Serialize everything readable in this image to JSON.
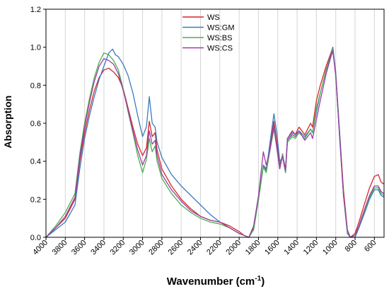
{
  "chart_data": {
    "type": "line",
    "xlabel_main": "Wavenumber (cm",
    "xlabel_sup": "-1",
    "xlabel_end": ")",
    "ylabel": "Absorption",
    "xlim": [
      4000,
      500
    ],
    "ylim": [
      0,
      1.2
    ],
    "grid": "vertical",
    "legend_position": "top-center",
    "x_ticks": [
      4000,
      3800,
      3600,
      3400,
      3200,
      3000,
      2800,
      2600,
      2400,
      2200,
      2000,
      1800,
      1600,
      1400,
      1200,
      1000,
      800,
      600
    ],
    "y_ticks": [
      "0.0",
      "0.2",
      "0.4",
      "0.6",
      "0.8",
      "1.0",
      "1.2"
    ],
    "series": [
      {
        "name": "WS",
        "color": "#d62728",
        "points": [
          [
            4000,
            0.0
          ],
          [
            3900,
            0.05
          ],
          [
            3800,
            0.1
          ],
          [
            3700,
            0.2
          ],
          [
            3650,
            0.4
          ],
          [
            3600,
            0.55
          ],
          [
            3550,
            0.67
          ],
          [
            3500,
            0.77
          ],
          [
            3450,
            0.84
          ],
          [
            3400,
            0.88
          ],
          [
            3350,
            0.89
          ],
          [
            3300,
            0.87
          ],
          [
            3250,
            0.84
          ],
          [
            3200,
            0.78
          ],
          [
            3150,
            0.68
          ],
          [
            3100,
            0.58
          ],
          [
            3050,
            0.49
          ],
          [
            3000,
            0.43
          ],
          [
            2960,
            0.47
          ],
          [
            2930,
            0.61
          ],
          [
            2900,
            0.53
          ],
          [
            2870,
            0.55
          ],
          [
            2850,
            0.46
          ],
          [
            2800,
            0.36
          ],
          [
            2700,
            0.27
          ],
          [
            2600,
            0.2
          ],
          [
            2500,
            0.15
          ],
          [
            2400,
            0.11
          ],
          [
            2300,
            0.09
          ],
          [
            2200,
            0.08
          ],
          [
            2100,
            0.06
          ],
          [
            2000,
            0.03
          ],
          [
            1950,
            0.01
          ],
          [
            1900,
            0.0
          ],
          [
            1850,
            0.05
          ],
          [
            1800,
            0.2
          ],
          [
            1750,
            0.38
          ],
          [
            1720,
            0.36
          ],
          [
            1680,
            0.48
          ],
          [
            1640,
            0.61
          ],
          [
            1610,
            0.5
          ],
          [
            1580,
            0.38
          ],
          [
            1550,
            0.43
          ],
          [
            1520,
            0.36
          ],
          [
            1500,
            0.52
          ],
          [
            1450,
            0.56
          ],
          [
            1420,
            0.54
          ],
          [
            1380,
            0.58
          ],
          [
            1320,
            0.54
          ],
          [
            1260,
            0.6
          ],
          [
            1240,
            0.58
          ],
          [
            1200,
            0.72
          ],
          [
            1160,
            0.8
          ],
          [
            1100,
            0.9
          ],
          [
            1050,
            0.97
          ],
          [
            1030,
            1.0
          ],
          [
            1000,
            0.85
          ],
          [
            960,
            0.55
          ],
          [
            920,
            0.25
          ],
          [
            880,
            0.04
          ],
          [
            850,
            0.0
          ],
          [
            800,
            0.02
          ],
          [
            760,
            0.08
          ],
          [
            700,
            0.18
          ],
          [
            650,
            0.26
          ],
          [
            600,
            0.32
          ],
          [
            560,
            0.33
          ],
          [
            530,
            0.29
          ],
          [
            500,
            0.28
          ]
        ]
      },
      {
        "name": "WS:GM",
        "color": "#3a7bbf",
        "points": [
          [
            4000,
            0.0
          ],
          [
            3900,
            0.04
          ],
          [
            3800,
            0.08
          ],
          [
            3700,
            0.17
          ],
          [
            3650,
            0.36
          ],
          [
            3600,
            0.52
          ],
          [
            3550,
            0.64
          ],
          [
            3500,
            0.74
          ],
          [
            3450,
            0.83
          ],
          [
            3400,
            0.9
          ],
          [
            3350,
            0.97
          ],
          [
            3310,
            0.99
          ],
          [
            3280,
            0.96
          ],
          [
            3250,
            0.95
          ],
          [
            3200,
            0.91
          ],
          [
            3150,
            0.85
          ],
          [
            3100,
            0.76
          ],
          [
            3050,
            0.64
          ],
          [
            3000,
            0.53
          ],
          [
            2960,
            0.58
          ],
          [
            2930,
            0.74
          ],
          [
            2900,
            0.6
          ],
          [
            2870,
            0.58
          ],
          [
            2850,
            0.5
          ],
          [
            2800,
            0.42
          ],
          [
            2700,
            0.33
          ],
          [
            2600,
            0.27
          ],
          [
            2500,
            0.22
          ],
          [
            2400,
            0.17
          ],
          [
            2300,
            0.12
          ],
          [
            2200,
            0.08
          ],
          [
            2100,
            0.05
          ],
          [
            2000,
            0.02
          ],
          [
            1950,
            0.01
          ],
          [
            1900,
            0.0
          ],
          [
            1850,
            0.04
          ],
          [
            1800,
            0.2
          ],
          [
            1750,
            0.38
          ],
          [
            1720,
            0.35
          ],
          [
            1680,
            0.5
          ],
          [
            1640,
            0.65
          ],
          [
            1610,
            0.55
          ],
          [
            1580,
            0.4
          ],
          [
            1550,
            0.42
          ],
          [
            1520,
            0.34
          ],
          [
            1500,
            0.52
          ],
          [
            1450,
            0.55
          ],
          [
            1420,
            0.54
          ],
          [
            1380,
            0.56
          ],
          [
            1320,
            0.53
          ],
          [
            1260,
            0.57
          ],
          [
            1240,
            0.55
          ],
          [
            1200,
            0.66
          ],
          [
            1160,
            0.76
          ],
          [
            1100,
            0.88
          ],
          [
            1050,
            0.96
          ],
          [
            1030,
            1.0
          ],
          [
            1000,
            0.87
          ],
          [
            960,
            0.55
          ],
          [
            920,
            0.22
          ],
          [
            880,
            0.02
          ],
          [
            850,
            0.0
          ],
          [
            800,
            0.0
          ],
          [
            760,
            0.05
          ],
          [
            700,
            0.13
          ],
          [
            650,
            0.2
          ],
          [
            600,
            0.25
          ],
          [
            560,
            0.25
          ],
          [
            530,
            0.22
          ],
          [
            500,
            0.21
          ]
        ]
      },
      {
        "name": "WS:BS",
        "color": "#4caf50",
        "points": [
          [
            4000,
            0.0
          ],
          [
            3900,
            0.06
          ],
          [
            3800,
            0.13
          ],
          [
            3700,
            0.23
          ],
          [
            3650,
            0.44
          ],
          [
            3600,
            0.6
          ],
          [
            3550,
            0.73
          ],
          [
            3500,
            0.84
          ],
          [
            3450,
            0.92
          ],
          [
            3400,
            0.97
          ],
          [
            3350,
            0.96
          ],
          [
            3300,
            0.93
          ],
          [
            3250,
            0.88
          ],
          [
            3200,
            0.78
          ],
          [
            3150,
            0.66
          ],
          [
            3100,
            0.55
          ],
          [
            3050,
            0.43
          ],
          [
            3000,
            0.34
          ],
          [
            2960,
            0.41
          ],
          [
            2930,
            0.52
          ],
          [
            2900,
            0.45
          ],
          [
            2870,
            0.48
          ],
          [
            2850,
            0.4
          ],
          [
            2800,
            0.31
          ],
          [
            2700,
            0.23
          ],
          [
            2600,
            0.17
          ],
          [
            2500,
            0.13
          ],
          [
            2400,
            0.1
          ],
          [
            2300,
            0.08
          ],
          [
            2200,
            0.07
          ],
          [
            2100,
            0.05
          ],
          [
            2000,
            0.02
          ],
          [
            1950,
            0.01
          ],
          [
            1900,
            0.0
          ],
          [
            1850,
            0.04
          ],
          [
            1800,
            0.2
          ],
          [
            1750,
            0.37
          ],
          [
            1720,
            0.34
          ],
          [
            1680,
            0.46
          ],
          [
            1640,
            0.57
          ],
          [
            1610,
            0.47
          ],
          [
            1580,
            0.36
          ],
          [
            1550,
            0.44
          ],
          [
            1520,
            0.34
          ],
          [
            1500,
            0.5
          ],
          [
            1450,
            0.53
          ],
          [
            1420,
            0.52
          ],
          [
            1380,
            0.55
          ],
          [
            1320,
            0.52
          ],
          [
            1260,
            0.57
          ],
          [
            1240,
            0.55
          ],
          [
            1200,
            0.68
          ],
          [
            1160,
            0.76
          ],
          [
            1100,
            0.88
          ],
          [
            1050,
            0.95
          ],
          [
            1030,
            0.99
          ],
          [
            1000,
            0.86
          ],
          [
            960,
            0.52
          ],
          [
            920,
            0.22
          ],
          [
            880,
            0.03
          ],
          [
            850,
            0.0
          ],
          [
            800,
            0.01
          ],
          [
            760,
            0.06
          ],
          [
            700,
            0.14
          ],
          [
            650,
            0.21
          ],
          [
            600,
            0.26
          ],
          [
            560,
            0.26
          ],
          [
            530,
            0.23
          ],
          [
            500,
            0.22
          ]
        ]
      },
      {
        "name": "WS:CS",
        "color": "#9b3fa8",
        "points": [
          [
            4000,
            0.0
          ],
          [
            3900,
            0.05
          ],
          [
            3800,
            0.11
          ],
          [
            3700,
            0.21
          ],
          [
            3650,
            0.42
          ],
          [
            3600,
            0.58
          ],
          [
            3550,
            0.71
          ],
          [
            3500,
            0.82
          ],
          [
            3450,
            0.9
          ],
          [
            3400,
            0.94
          ],
          [
            3350,
            0.93
          ],
          [
            3300,
            0.91
          ],
          [
            3250,
            0.86
          ],
          [
            3200,
            0.77
          ],
          [
            3150,
            0.67
          ],
          [
            3100,
            0.56
          ],
          [
            3050,
            0.46
          ],
          [
            3000,
            0.38
          ],
          [
            2960,
            0.43
          ],
          [
            2930,
            0.56
          ],
          [
            2900,
            0.49
          ],
          [
            2870,
            0.51
          ],
          [
            2850,
            0.43
          ],
          [
            2800,
            0.33
          ],
          [
            2700,
            0.25
          ],
          [
            2600,
            0.19
          ],
          [
            2500,
            0.14
          ],
          [
            2400,
            0.11
          ],
          [
            2300,
            0.09
          ],
          [
            2200,
            0.08
          ],
          [
            2100,
            0.05
          ],
          [
            2000,
            0.02
          ],
          [
            1950,
            0.01
          ],
          [
            1900,
            0.0
          ],
          [
            1850,
            0.06
          ],
          [
            1800,
            0.22
          ],
          [
            1750,
            0.45
          ],
          [
            1720,
            0.38
          ],
          [
            1680,
            0.46
          ],
          [
            1640,
            0.59
          ],
          [
            1610,
            0.47
          ],
          [
            1580,
            0.36
          ],
          [
            1550,
            0.43
          ],
          [
            1520,
            0.35
          ],
          [
            1500,
            0.51
          ],
          [
            1450,
            0.54
          ],
          [
            1420,
            0.53
          ],
          [
            1380,
            0.56
          ],
          [
            1320,
            0.51
          ],
          [
            1260,
            0.55
          ],
          [
            1240,
            0.52
          ],
          [
            1200,
            0.62
          ],
          [
            1160,
            0.72
          ],
          [
            1100,
            0.86
          ],
          [
            1050,
            0.95
          ],
          [
            1030,
            0.98
          ],
          [
            1000,
            0.85
          ],
          [
            960,
            0.53
          ],
          [
            920,
            0.23
          ],
          [
            880,
            0.04
          ],
          [
            850,
            0.0
          ],
          [
            800,
            0.01
          ],
          [
            760,
            0.06
          ],
          [
            700,
            0.15
          ],
          [
            650,
            0.22
          ],
          [
            600,
            0.27
          ],
          [
            560,
            0.27
          ],
          [
            530,
            0.24
          ],
          [
            500,
            0.23
          ]
        ]
      }
    ]
  }
}
